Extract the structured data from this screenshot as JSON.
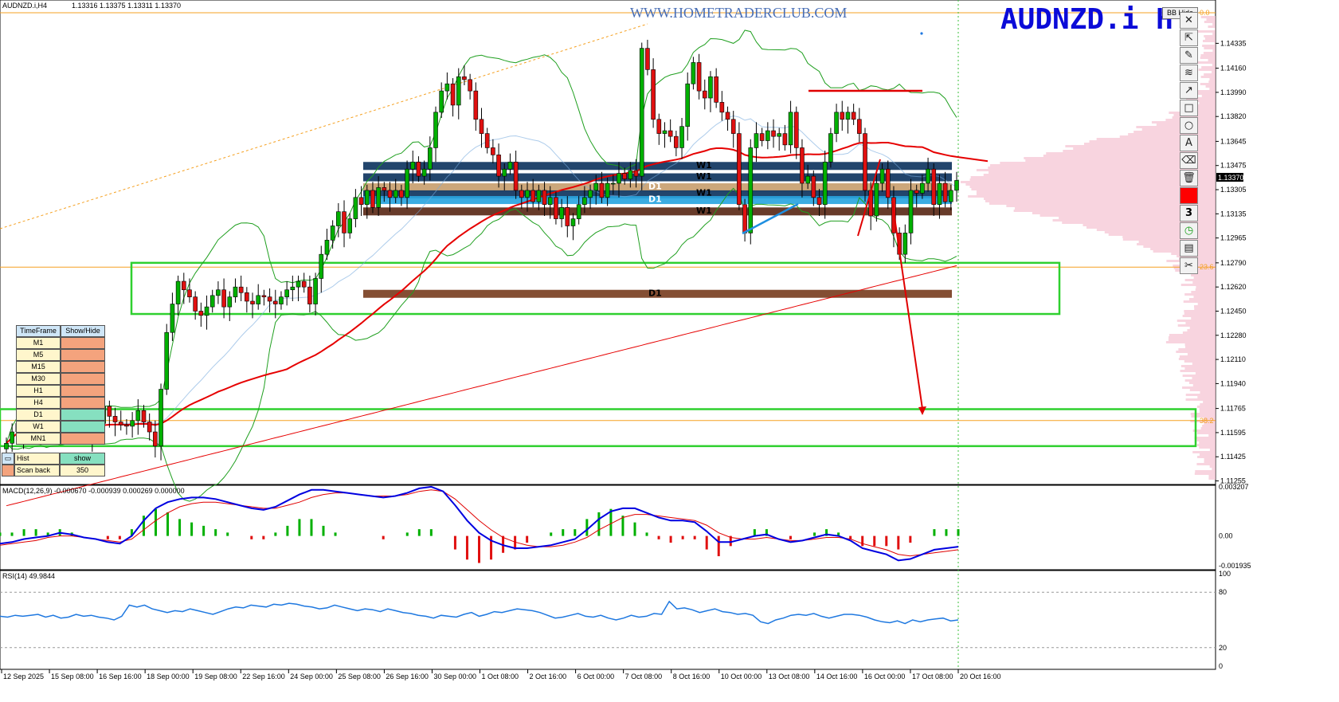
{
  "header": {
    "title": "AUDNZD.i,H4",
    "ohlc": "1.13316 1.13375 1.13311 1.13370",
    "watermark": "WWW.HOMETRADERCLUB.COM",
    "symbol_banner": "AUDNZD.i H",
    "bb_button": "BB Hide",
    "price_tag": "1.13370"
  },
  "chart_data": [
    {
      "type": "candlestick",
      "title": "AUDNZD.i,H4",
      "x_ticks": [
        "12 Sep 2025",
        "15 Sep 08:00",
        "16 Sep 16:00",
        "18 Sep 00:00",
        "19 Sep 08:00",
        "22 Sep 16:00",
        "24 Sep 00:00",
        "25 Sep 08:00",
        "26 Sep 16:00",
        "30 Sep 00:00",
        "1 Oct 08:00",
        "2 Oct 16:00",
        "6 Oct 00:00",
        "7 Oct 08:00",
        "8 Oct 16:00",
        "10 Oct 00:00",
        "13 Oct 08:00",
        "14 Oct 16:00",
        "16 Oct 00:00",
        "17 Oct 08:00",
        "20 Oct 16:00"
      ],
      "y_ticks": [
        1.14335,
        1.1416,
        1.1399,
        1.1382,
        1.13645,
        1.13475,
        1.13305,
        1.13135,
        1.12965,
        1.1279,
        1.1262,
        1.1245,
        1.1228,
        1.1211,
        1.1194,
        1.11765,
        1.11595,
        1.11425,
        1.11255
      ],
      "ylim": [
        1.1123,
        1.1464
      ],
      "last_price": 1.1337,
      "series_close": [
        1.1152,
        1.116,
        1.1166,
        1.1158,
        1.1171,
        1.1165,
        1.1162,
        1.1178,
        1.1167,
        1.1162,
        1.117,
        1.1169,
        1.1163,
        1.116,
        1.1162,
        1.1156,
        1.1166,
        1.1178,
        1.1171,
        1.1167,
        1.1165,
        1.1164,
        1.1168,
        1.1175,
        1.1167,
        1.116,
        1.115,
        1.119,
        1.123,
        1.125,
        1.1266,
        1.126,
        1.1255,
        1.1245,
        1.1242,
        1.1248,
        1.1256,
        1.126,
        1.1248,
        1.1255,
        1.1262,
        1.1258,
        1.1252,
        1.125,
        1.1256,
        1.1255,
        1.1252,
        1.125,
        1.1255,
        1.126,
        1.1262,
        1.1266,
        1.1262,
        1.125,
        1.1268,
        1.1285,
        1.1295,
        1.1305,
        1.1315,
        1.13,
        1.131,
        1.1325,
        1.132,
        1.133,
        1.1318,
        1.1332,
        1.133,
        1.1325,
        1.133,
        1.1325,
        1.1345,
        1.135,
        1.134,
        1.1345,
        1.136,
        1.1385,
        1.14,
        1.1405,
        1.139,
        1.141,
        1.1408,
        1.14,
        1.138,
        1.137,
        1.136,
        1.1355,
        1.134,
        1.1345,
        1.135,
        1.133,
        1.1325,
        1.133,
        1.1322,
        1.133,
        1.132,
        1.1325,
        1.131,
        1.1318,
        1.1305,
        1.131,
        1.132,
        1.1325,
        1.133,
        1.1335,
        1.1325,
        1.1335,
        1.1335,
        1.1342,
        1.1338,
        1.1344,
        1.134,
        1.143,
        1.1415,
        1.138,
        1.137,
        1.1372,
        1.1368,
        1.136,
        1.1375,
        1.1405,
        1.142,
        1.14,
        1.1395,
        1.141,
        1.1392,
        1.1385,
        1.138,
        1.137,
        1.132,
        1.13,
        1.136,
        1.137,
        1.1365,
        1.1372,
        1.1368,
        1.137,
        1.1362,
        1.1385,
        1.136,
        1.1335,
        1.134,
        1.1325,
        1.132,
        1.135,
        1.137,
        1.1385,
        1.138,
        1.1385,
        1.138,
        1.137,
        1.133,
        1.1312,
        1.1335,
        1.1345,
        1.1325,
        1.13,
        1.1285,
        1.13,
        1.133,
        1.1328,
        1.1335,
        1.1345,
        1.132,
        1.1335,
        1.1322,
        1.133,
        1.1337
      ],
      "bollinger": "20-period on H4 close, upper/middle/lower",
      "moving_averages": [
        "red thick MA",
        "red thin MA"
      ],
      "zones": [
        {
          "label": "W1",
          "from": 1.1346,
          "to": 1.135
        },
        {
          "label": "W1",
          "from": 1.1338,
          "to": 1.1342
        },
        {
          "label": "D1",
          "from": 1.1331,
          "to": 1.1335
        },
        {
          "label": "W1",
          "from": 1.1327,
          "to": 1.133
        },
        {
          "label": "D1",
          "from": 1.1322,
          "to": 1.1326
        },
        {
          "label": "W1",
          "from": 1.1314,
          "to": 1.1318
        },
        {
          "label": "D1",
          "from": 1.1256,
          "to": 1.126
        }
      ],
      "fib_levels": [
        {
          "label": "23.6",
          "price": 1.1276
        },
        {
          "label": "38.2",
          "price": 1.1168
        },
        {
          "label": "0.0",
          "price": 1.1455
        }
      ],
      "boxes": [
        {
          "from": 1.1243,
          "to": 1.1279
        },
        {
          "from": 1.115,
          "to": 1.1176
        }
      ],
      "red_resistance_price": 1.1396,
      "arrow_target": 1.1168
    },
    {
      "type": "line",
      "title": "MACD(12,26,9) -0.000670 -0.000939 0.000269 0.000000",
      "y_ticks": [
        "0.003207",
        "0.00",
        "-0.001935"
      ],
      "ylim": [
        -0.0022,
        0.0033
      ],
      "main": [
        -0.0005,
        -0.0004,
        -0.0002,
        -0.0001,
        0.0,
        0.0002,
        0.0001,
        -0.0001,
        -0.0002,
        -0.0004,
        -0.0005,
        0.0,
        0.001,
        0.0018,
        0.0022,
        0.0024,
        0.0025,
        0.0025,
        0.0024,
        0.0022,
        0.002,
        0.0018,
        0.0017,
        0.0019,
        0.0023,
        0.0027,
        0.003,
        0.003,
        0.0029,
        0.0028,
        0.0027,
        0.0026,
        0.0025,
        0.0026,
        0.0028,
        0.0031,
        0.0032,
        0.0029,
        0.002,
        0.001,
        0.0002,
        -0.0003,
        -0.0006,
        -0.0008,
        -0.0008,
        -0.0007,
        -0.0006,
        -0.0004,
        -0.0002,
        0.0004,
        0.0011,
        0.0016,
        0.0018,
        0.0018,
        0.0015,
        0.0012,
        0.001,
        0.001,
        0.0009,
        0.0003,
        -0.0004,
        -0.0004,
        -0.0002,
        0.0,
        0.0001,
        -0.0002,
        -0.0004,
        -0.0003,
        -0.0001,
        0.0001,
        0.0,
        -0.0003,
        -0.0008,
        -0.001,
        -0.0012,
        -0.0016,
        -0.0015,
        -0.0012,
        -0.0009,
        -0.0008,
        -0.0007
      ],
      "signal": [
        -0.0006,
        -0.0005,
        -0.0004,
        -0.0003,
        -0.0001,
        0.0,
        0.0,
        -0.0001,
        -0.0002,
        -0.0003,
        -0.0004,
        -0.0002,
        0.0004,
        0.001,
        0.0015,
        0.0019,
        0.0021,
        0.0022,
        0.0022,
        0.0021,
        0.002,
        0.0019,
        0.0018,
        0.0018,
        0.002,
        0.0022,
        0.0025,
        0.0027,
        0.0028,
        0.0028,
        0.0027,
        0.0026,
        0.0026,
        0.0026,
        0.0027,
        0.0029,
        0.003,
        0.0029,
        0.0024,
        0.0017,
        0.001,
        0.0004,
        -0.0001,
        -0.0004,
        -0.0006,
        -0.0007,
        -0.0007,
        -0.0006,
        -0.0004,
        -0.0001,
        0.0004,
        0.0008,
        0.0012,
        0.0014,
        0.0014,
        0.0013,
        0.0012,
        0.0011,
        0.001,
        0.0007,
        0.0002,
        -0.0001,
        -0.0002,
        -0.0002,
        -0.0001,
        -0.0002,
        -0.0003,
        -0.0003,
        -0.0002,
        -0.0001,
        -0.0001,
        -0.0002,
        -0.0005,
        -0.0007,
        -0.0009,
        -0.0012,
        -0.0013,
        -0.0012,
        -0.0011,
        -0.001,
        -0.0009
      ]
    },
    {
      "type": "line",
      "title": "RSI(14) 49.9844",
      "y_ticks": [
        "100",
        "80",
        "20",
        "0"
      ],
      "ylim": [
        0,
        100
      ],
      "values": [
        54,
        53,
        55,
        54,
        55,
        56,
        53,
        55,
        52,
        53,
        56,
        54,
        55,
        53,
        52,
        50,
        54,
        66,
        64,
        66,
        62,
        60,
        58,
        60,
        59,
        62,
        60,
        58,
        56,
        59,
        62,
        64,
        63,
        66,
        65,
        64,
        67,
        66,
        68,
        67,
        65,
        64,
        62,
        63,
        66,
        64,
        62,
        60,
        62,
        61,
        59,
        62,
        60,
        58,
        57,
        55,
        54,
        52,
        55,
        54,
        53,
        56,
        58,
        54,
        56,
        59,
        58,
        60,
        62,
        61,
        60,
        58,
        55,
        52,
        53,
        55,
        57,
        54,
        53,
        55,
        52,
        50,
        52,
        55,
        53,
        54,
        57,
        56,
        70,
        62,
        63,
        61,
        58,
        60,
        62,
        59,
        58,
        56,
        57,
        55,
        48,
        46,
        50,
        52,
        55,
        56,
        55,
        57,
        54,
        52,
        54,
        56,
        56,
        55,
        53,
        50,
        48,
        47,
        49,
        46,
        50,
        48,
        50,
        51,
        52,
        49,
        50
      ]
    }
  ],
  "toolbar": {
    "items": [
      "close",
      "cursor",
      "pencil",
      "fibonacci",
      "trend-arrow",
      "rectangle",
      "ellipse",
      "text",
      "eraser-brush",
      "delete",
      "color",
      "counter",
      "clock",
      "screenshot",
      "scissors"
    ],
    "close_label": "✕",
    "text_label": "A",
    "counter_label": "3"
  },
  "timeframe_panel": {
    "header": [
      "TimeFrame",
      "Show/Hide"
    ],
    "rows": [
      {
        "tf": "M1",
        "state": "hide"
      },
      {
        "tf": "M5",
        "state": "hide"
      },
      {
        "tf": "M15",
        "state": "hide"
      },
      {
        "tf": "M30",
        "state": "hide"
      },
      {
        "tf": "H1",
        "state": "hide"
      },
      {
        "tf": "H4",
        "state": "hide"
      },
      {
        "tf": "D1",
        "state": "show"
      },
      {
        "tf": "W1",
        "state": "show"
      },
      {
        "tf": "MN1",
        "state": "hide"
      }
    ],
    "hist_label": "Hist",
    "hist_value": "show",
    "scan_label": "Scan back",
    "scan_value": "350"
  },
  "colors": {
    "bull": "#00b000",
    "bear": "#e01010",
    "ma_red": "#e60000",
    "bollinger": "#1f9f1f",
    "zone_w1": "#0f3560",
    "zone_d1_brown": "#7a3f22",
    "zone_d1_cyan": "#2aa5e0",
    "box_green": "#2fd02f",
    "fib": "#f5a020",
    "macd_main": "#0000e0",
    "macd_signal": "#e00000",
    "rsi": "#1e78e0",
    "profile": "#f6c6d4"
  }
}
